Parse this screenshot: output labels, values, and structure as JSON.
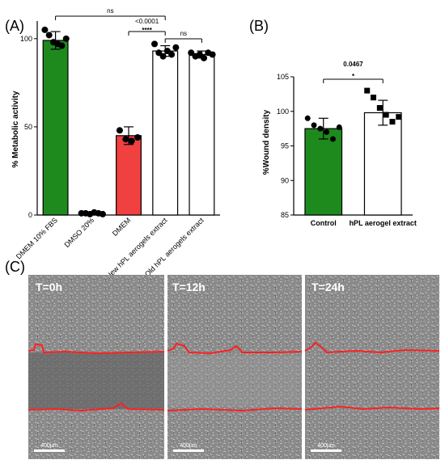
{
  "panels": {
    "a": "(A)",
    "b": "(B)",
    "c": "(C)"
  },
  "chart_data": [
    {
      "type": "bar",
      "ylabel": "% Metabolic activity",
      "ylim": [
        0,
        110
      ],
      "yticks": [
        0,
        50,
        100
      ],
      "categories": [
        "DMEM 10% FBS",
        "DMSO 20%",
        "DMEM",
        "New hPL aerogels extract",
        "Old hPL aerogels extract"
      ],
      "values": [
        99,
        1,
        45,
        93,
        91
      ],
      "errors": [
        5,
        0.5,
        5,
        3,
        2
      ],
      "bar_colors": [
        "#1e8a1e",
        "#ffffff",
        "#f04040",
        "#ffffff",
        "#ffffff"
      ],
      "points": [
        [
          105,
          102,
          98,
          97,
          96,
          100
        ],
        [
          1,
          1,
          0.5,
          1.5,
          1,
          0.5
        ],
        [
          48,
          43,
          42,
          44
        ],
        [
          97,
          92,
          90,
          93,
          91,
          95
        ],
        [
          92,
          90,
          91,
          89,
          92,
          91
        ]
      ],
      "annotations": [
        {
          "from": 0,
          "to": 3,
          "text": "ns"
        },
        {
          "from": 2,
          "to": 3,
          "text": "<0.0001"
        },
        {
          "from": 2,
          "to": 3,
          "text": "****"
        },
        {
          "from": 3,
          "to": 4,
          "text": "ns"
        }
      ]
    },
    {
      "type": "bar",
      "ylabel": "%Wound density",
      "ylim": [
        85,
        105
      ],
      "yticks": [
        85,
        90,
        95,
        100,
        105
      ],
      "categories": [
        "Control",
        "hPL aerogel extract"
      ],
      "values": [
        97.5,
        99.8
      ],
      "errors": [
        1.5,
        1.8
      ],
      "bar_colors": [
        "#1e8a1e",
        "#ffffff"
      ],
      "points": [
        [
          99,
          98,
          97.5,
          97,
          96,
          97.7
        ],
        [
          103,
          102,
          100.5,
          99.5,
          98.5,
          99.2
        ]
      ],
      "annotations": [
        {
          "from": 0,
          "to": 1,
          "text": "0.0467"
        },
        {
          "from": 0,
          "to": 1,
          "text": "*"
        }
      ]
    }
  ],
  "micrographs": [
    {
      "label": "T=0h",
      "scale": "400µm"
    },
    {
      "label": "T=12h",
      "scale": "400µm"
    },
    {
      "label": "T=24h",
      "scale": "400µm"
    }
  ]
}
